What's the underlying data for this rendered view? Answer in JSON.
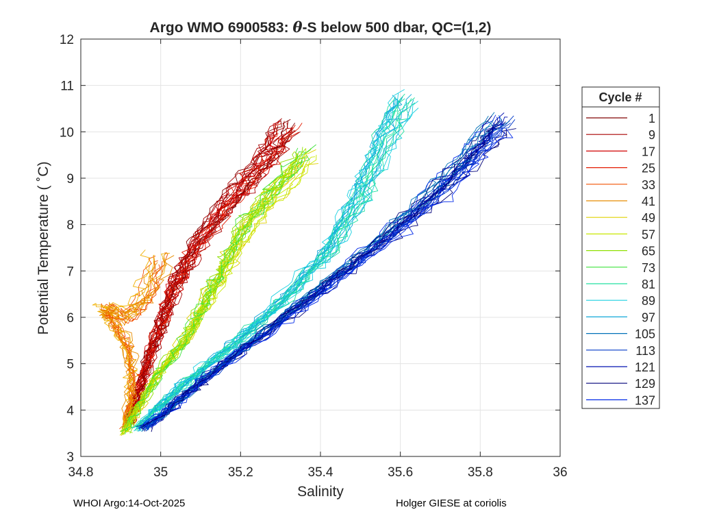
{
  "chart_data": {
    "type": "line",
    "title_prefix": "Argo WMO 6900583: ",
    "title_symbol": "θ",
    "title_suffix": "-S below 500 dbar,  QC=(1,2)",
    "xlabel": "Salinity",
    "ylabel": "Potential Temperature ( ˚C)",
    "xlim": [
      34.8,
      36
    ],
    "ylim": [
      3,
      12
    ],
    "xticks": [
      34.8,
      35,
      35.2,
      35.4,
      35.6,
      35.8,
      36
    ],
    "xtick_labels": [
      "34.8",
      "35",
      "35.2",
      "35.4",
      "35.6",
      "35.8",
      "36"
    ],
    "yticks": [
      3,
      4,
      5,
      6,
      7,
      8,
      9,
      10,
      11,
      12
    ],
    "ytick_labels": [
      "3",
      "4",
      "5",
      "6",
      "7",
      "8",
      "9",
      "10",
      "11",
      "12"
    ],
    "grid": true,
    "legend_title": "Cycle #",
    "legend_position": "right-outside",
    "colormap": "jet",
    "legend": [
      {
        "label": "1",
        "color": "#800000"
      },
      {
        "label": "9",
        "color": "#a80000"
      },
      {
        "label": "17",
        "color": "#d10000"
      },
      {
        "label": "25",
        "color": "#e31a00"
      },
      {
        "label": "33",
        "color": "#f25000"
      },
      {
        "label": "41",
        "color": "#e88c00"
      },
      {
        "label": "49",
        "color": "#e0d000"
      },
      {
        "label": "57",
        "color": "#c8e800"
      },
      {
        "label": "65",
        "color": "#8ee000"
      },
      {
        "label": "73",
        "color": "#3de23a"
      },
      {
        "label": "81",
        "color": "#21e0a0"
      },
      {
        "label": "89",
        "color": "#1ad0e0"
      },
      {
        "label": "97",
        "color": "#10a8d8"
      },
      {
        "label": "105",
        "color": "#0070b8"
      },
      {
        "label": "113",
        "color": "#0038c8"
      },
      {
        "label": "121",
        "color": "#0010b0"
      },
      {
        "label": "129",
        "color": "#00007a"
      },
      {
        "label": "137",
        "color": "#0028e8"
      }
    ],
    "series_envelopes": [
      {
        "group": "early",
        "colors": [
          "#800000",
          "#a80000",
          "#d10000",
          "#e31a00"
        ],
        "count": 26,
        "x": [
          34.92,
          34.95,
          34.99,
          35.03,
          35.09,
          35.18,
          35.26,
          35.32
        ],
        "y": [
          3.7,
          4.6,
          5.6,
          6.6,
          7.6,
          8.6,
          9.4,
          10.2
        ]
      },
      {
        "group": "orange",
        "colors": [
          "#f25000",
          "#e88c00",
          "#f0b000"
        ],
        "count": 14,
        "x": [
          34.91,
          34.93,
          34.92,
          34.88,
          34.86,
          34.92,
          34.97,
          35.0
        ],
        "y": [
          3.6,
          4.5,
          5.3,
          5.9,
          6.2,
          6.0,
          6.5,
          7.4
        ]
      },
      {
        "group": "yellow-green",
        "colors": [
          "#e0d000",
          "#c8e800",
          "#8ee000",
          "#3de23a"
        ],
        "count": 24,
        "x": [
          34.91,
          34.98,
          35.07,
          35.12,
          35.17,
          35.22,
          35.3,
          35.38
        ],
        "y": [
          3.5,
          4.6,
          5.6,
          6.4,
          7.2,
          8.0,
          8.8,
          9.6
        ]
      },
      {
        "group": "cyan",
        "colors": [
          "#21e0a0",
          "#1ad0e0",
          "#10a8d8"
        ],
        "count": 22,
        "x": [
          34.94,
          35.05,
          35.18,
          35.3,
          35.42,
          35.5,
          35.56,
          35.62
        ],
        "y": [
          3.6,
          4.5,
          5.4,
          6.3,
          7.4,
          8.6,
          9.8,
          10.8
        ]
      },
      {
        "group": "blue",
        "colors": [
          "#0070b8",
          "#0038c8",
          "#0010b0",
          "#0028e8",
          "#00007a"
        ],
        "count": 30,
        "x": [
          34.96,
          35.1,
          35.25,
          35.4,
          35.55,
          35.68,
          35.78,
          35.86
        ],
        "y": [
          3.6,
          4.6,
          5.6,
          6.6,
          7.6,
          8.6,
          9.5,
          10.3
        ]
      }
    ]
  },
  "footer": {
    "left": "WHOI Argo:14-Oct-2025",
    "right": "Holger GIESE at coriolis"
  }
}
